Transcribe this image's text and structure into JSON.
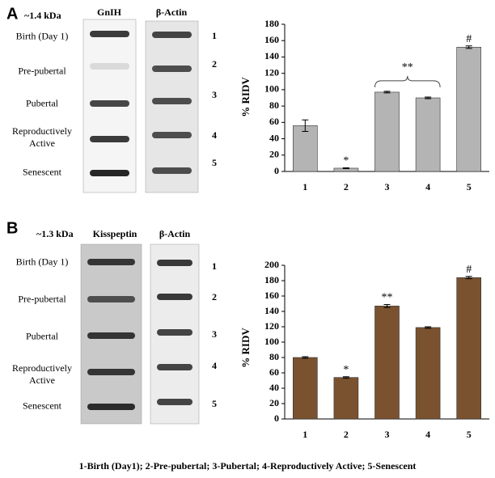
{
  "panels": [
    {
      "letter": "A",
      "mw_label": "~1.4 kDa",
      "blot_labels": [
        "GnIH",
        "β-Actin"
      ],
      "stage_labels": [
        "Birth (Day 1)",
        "Pre-pubertal",
        "Pubertal",
        "Reproductively Active",
        "Senescent"
      ],
      "lane_numbers": [
        "1",
        "2",
        "3",
        "4",
        "5"
      ]
    },
    {
      "letter": "B",
      "mw_label": "~1.3 kDa",
      "blot_labels": [
        "Kisspeptin",
        "β-Actin"
      ],
      "stage_labels": [
        "Birth (Day 1)",
        "Pre-pubertal",
        "Pubertal",
        "Reproductively Active",
        "Senescent"
      ],
      "lane_numbers": [
        "1",
        "2",
        "3",
        "4",
        "5"
      ]
    }
  ],
  "chart_data": [
    {
      "type": "bar",
      "ylabel": "% RIDV",
      "categories": [
        "1",
        "2",
        "3",
        "4",
        "5"
      ],
      "values": [
        56,
        4,
        97,
        90,
        152
      ],
      "errors": [
        7,
        0.5,
        1,
        1,
        1.5
      ],
      "color": "#b4b4b4",
      "annotations": [
        null,
        "*",
        null,
        null,
        "#"
      ],
      "group_annotation": "**",
      "ylim": [
        0,
        180
      ],
      "yticks": [
        0,
        20,
        40,
        60,
        80,
        100,
        120,
        140,
        160,
        180
      ]
    },
    {
      "type": "bar",
      "ylabel": "% RIDV",
      "categories": [
        "1",
        "2",
        "3",
        "4",
        "5"
      ],
      "values": [
        80,
        54,
        147,
        119,
        184
      ],
      "errors": [
        1,
        1,
        2,
        1,
        1.5
      ],
      "color": "#7a5230",
      "annotations": [
        null,
        "*",
        "**",
        null,
        "#"
      ],
      "ylim": [
        0,
        200
      ],
      "yticks": [
        0,
        20,
        40,
        60,
        80,
        100,
        120,
        140,
        160,
        180,
        200
      ]
    }
  ],
  "caption": "1-Birth (Day1); 2-Pre-pubertal; 3-Pubertal; 4-Reproductively Active; 5-Senescent"
}
